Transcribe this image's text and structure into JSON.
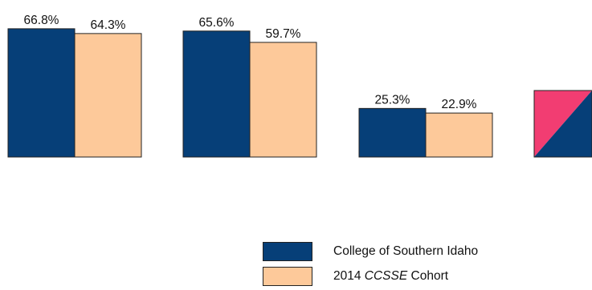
{
  "chart_data": {
    "type": "bar",
    "title": "",
    "xlabel": "",
    "ylabel": "",
    "ylim": [
      0,
      68
    ],
    "grid": false,
    "legend_placement": "bottom-right",
    "categories": [
      "",
      "",
      "",
      ""
    ],
    "series": [
      {
        "name": "College of Southern Idaho",
        "color": "#063f78",
        "values": [
          66.8,
          65.6,
          25.3,
          null
        ],
        "labels": [
          "66.8%",
          "65.6%",
          "25.3%",
          ""
        ]
      },
      {
        "name": "2014 CCSSE Cohort",
        "color": "#fdc99a",
        "values": [
          64.3,
          59.7,
          22.9,
          null
        ],
        "labels": [
          "64.3%",
          "59.7%",
          "22.9%",
          ""
        ]
      }
    ],
    "partial_marker_colors": [
      "#f23d72",
      "#063f78"
    ]
  },
  "legend": {
    "series1": {
      "label": "College of Southern Idaho"
    },
    "series2": {
      "year": "2014 ",
      "italic": "CCSSE",
      "rest": "Cohort"
    }
  }
}
